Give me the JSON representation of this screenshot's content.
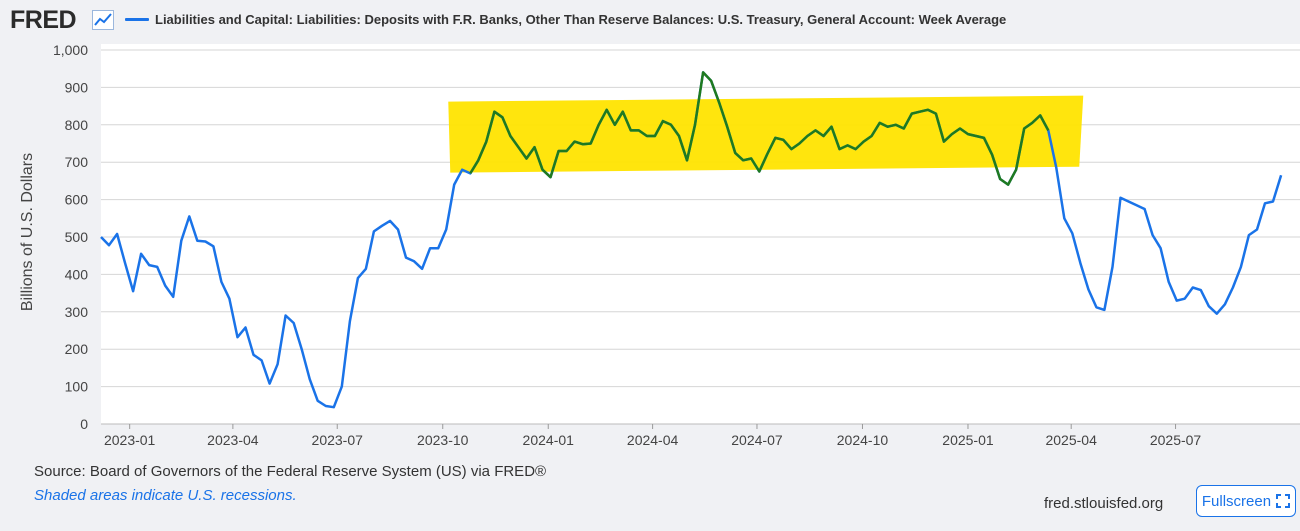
{
  "header": {
    "logo": "FRED",
    "legend_label": "Liabilities and Capital: Liabilities: Deposits with F.R. Banks, Other Than Reserve Balances: U.S. Treasury, General Account: Week Average"
  },
  "footer": {
    "source": "Source: Board of Governors of the Federal Reserve System (US) via FRED®",
    "note": "Shaded areas indicate U.S. recessions.",
    "site": "fred.stlouisfed.org",
    "fullscreen_label": "Fullscreen"
  },
  "colors": {
    "series": "#1a73e8",
    "highlight_fill": "#ffe400",
    "highlight_line": "#1f7a1f",
    "grid": "#d6d6d6"
  },
  "chart_data": {
    "type": "line",
    "title": "",
    "xlabel": "",
    "ylabel": "Billions of U.S. Dollars",
    "ylim": [
      0,
      1000
    ],
    "y_ticks": [
      "0",
      "100",
      "200",
      "300",
      "400",
      "500",
      "600",
      "700",
      "800",
      "900",
      "1,000"
    ],
    "x_ticks": [
      "2023-01",
      "2023-04",
      "2023-07",
      "2023-10",
      "2024-01",
      "2024-04",
      "2024-07",
      "2024-10",
      "2025-01",
      "2025-04",
      "2025-07"
    ],
    "x_range": [
      "2022-12-07",
      "2025-09-17"
    ],
    "grid": true,
    "series": [
      {
        "name": "Liabilities and Capital: Liabilities: Deposits with F.R. Banks, Other Than Reserve Balances: U.S. Treasury, General Account: Week Average",
        "points": [
          [
            "2022-12-07",
            500
          ],
          [
            "2022-12-14",
            478
          ],
          [
            "2022-12-21",
            508
          ],
          [
            "2022-12-28",
            430
          ],
          [
            "2023-01-04",
            355
          ],
          [
            "2023-01-11",
            455
          ],
          [
            "2023-01-18",
            425
          ],
          [
            "2023-01-25",
            420
          ],
          [
            "2023-02-01",
            370
          ],
          [
            "2023-02-08",
            340
          ],
          [
            "2023-02-15",
            490
          ],
          [
            "2023-02-22",
            555
          ],
          [
            "2023-03-01",
            490
          ],
          [
            "2023-03-08",
            488
          ],
          [
            "2023-03-15",
            475
          ],
          [
            "2023-03-22",
            380
          ],
          [
            "2023-03-29",
            335
          ],
          [
            "2023-04-05",
            232
          ],
          [
            "2023-04-12",
            258
          ],
          [
            "2023-04-19",
            185
          ],
          [
            "2023-04-26",
            170
          ],
          [
            "2023-05-03",
            108
          ],
          [
            "2023-05-10",
            160
          ],
          [
            "2023-05-17",
            290
          ],
          [
            "2023-05-24",
            270
          ],
          [
            "2023-05-31",
            200
          ],
          [
            "2023-06-07",
            120
          ],
          [
            "2023-06-14",
            62
          ],
          [
            "2023-06-21",
            48
          ],
          [
            "2023-06-28",
            45
          ],
          [
            "2023-07-05",
            100
          ],
          [
            "2023-07-12",
            275
          ],
          [
            "2023-07-19",
            390
          ],
          [
            "2023-07-26",
            415
          ],
          [
            "2023-08-02",
            515
          ],
          [
            "2023-08-09",
            530
          ],
          [
            "2023-08-16",
            543
          ],
          [
            "2023-08-23",
            520
          ],
          [
            "2023-08-30",
            445
          ],
          [
            "2023-09-06",
            435
          ],
          [
            "2023-09-13",
            415
          ],
          [
            "2023-09-20",
            470
          ],
          [
            "2023-09-27",
            470
          ],
          [
            "2023-10-04",
            520
          ],
          [
            "2023-10-11",
            640
          ],
          [
            "2023-10-18",
            680
          ],
          [
            "2023-10-25",
            670
          ],
          [
            "2023-11-01",
            705
          ],
          [
            "2023-11-08",
            755
          ],
          [
            "2023-11-15",
            835
          ],
          [
            "2023-11-22",
            820
          ],
          [
            "2023-11-29",
            770
          ],
          [
            "2023-12-06",
            740
          ],
          [
            "2023-12-13",
            710
          ],
          [
            "2023-12-20",
            740
          ],
          [
            "2023-12-27",
            680
          ],
          [
            "2024-01-03",
            660
          ],
          [
            "2024-01-10",
            730
          ],
          [
            "2024-01-17",
            730
          ],
          [
            "2024-01-24",
            755
          ],
          [
            "2024-01-31",
            748
          ],
          [
            "2024-02-07",
            750
          ],
          [
            "2024-02-14",
            800
          ],
          [
            "2024-02-21",
            840
          ],
          [
            "2024-02-28",
            800
          ],
          [
            "2024-03-06",
            835
          ],
          [
            "2024-03-13",
            785
          ],
          [
            "2024-03-20",
            785
          ],
          [
            "2024-03-27",
            770
          ],
          [
            "2024-04-03",
            770
          ],
          [
            "2024-04-10",
            810
          ],
          [
            "2024-04-17",
            800
          ],
          [
            "2024-04-24",
            770
          ],
          [
            "2024-05-01",
            705
          ],
          [
            "2024-05-08",
            800
          ],
          [
            "2024-05-15",
            940
          ],
          [
            "2024-05-22",
            918
          ],
          [
            "2024-05-29",
            860
          ],
          [
            "2024-06-05",
            795
          ],
          [
            "2024-06-12",
            725
          ],
          [
            "2024-06-19",
            705
          ],
          [
            "2024-06-26",
            710
          ],
          [
            "2024-07-03",
            675
          ],
          [
            "2024-07-10",
            722
          ],
          [
            "2024-07-17",
            765
          ],
          [
            "2024-07-24",
            760
          ],
          [
            "2024-07-31",
            735
          ],
          [
            "2024-08-07",
            750
          ],
          [
            "2024-08-14",
            770
          ],
          [
            "2024-08-21",
            785
          ],
          [
            "2024-08-28",
            770
          ],
          [
            "2024-09-04",
            795
          ],
          [
            "2024-09-11",
            735
          ],
          [
            "2024-09-18",
            745
          ],
          [
            "2024-09-25",
            735
          ],
          [
            "2024-10-02",
            755
          ],
          [
            "2024-10-09",
            770
          ],
          [
            "2024-10-16",
            805
          ],
          [
            "2024-10-23",
            795
          ],
          [
            "2024-10-30",
            800
          ],
          [
            "2024-11-06",
            790
          ],
          [
            "2024-11-13",
            830
          ],
          [
            "2024-11-20",
            835
          ],
          [
            "2024-11-27",
            840
          ],
          [
            "2024-12-04",
            830
          ],
          [
            "2024-12-11",
            755
          ],
          [
            "2024-12-18",
            775
          ],
          [
            "2024-12-25",
            790
          ],
          [
            "2025-01-01",
            775
          ],
          [
            "2025-01-08",
            770
          ],
          [
            "2025-01-15",
            765
          ],
          [
            "2025-01-22",
            720
          ],
          [
            "2025-01-29",
            655
          ],
          [
            "2025-02-05",
            640
          ],
          [
            "2025-02-12",
            680
          ],
          [
            "2025-02-19",
            790
          ],
          [
            "2025-02-26",
            805
          ],
          [
            "2025-03-05",
            825
          ],
          [
            "2025-03-12",
            785
          ],
          [
            "2025-03-19",
            685
          ],
          [
            "2025-03-26",
            550
          ],
          [
            "2025-04-02",
            510
          ],
          [
            "2025-04-09",
            430
          ],
          [
            "2025-04-16",
            360
          ],
          [
            "2025-04-23",
            312
          ],
          [
            "2025-04-30",
            305
          ],
          [
            "2025-05-07",
            420
          ],
          [
            "2025-05-14",
            605
          ],
          [
            "2025-05-21",
            595
          ],
          [
            "2025-05-28",
            585
          ],
          [
            "2025-06-04",
            575
          ],
          [
            "2025-06-11",
            505
          ],
          [
            "2025-06-18",
            470
          ],
          [
            "2025-06-25",
            380
          ],
          [
            "2025-07-02",
            330
          ],
          [
            "2025-07-09",
            335
          ],
          [
            "2025-07-16",
            365
          ],
          [
            "2025-07-23",
            358
          ],
          [
            "2025-07-30",
            315
          ],
          [
            "2025-08-06",
            295
          ],
          [
            "2025-08-13",
            320
          ],
          [
            "2025-08-20",
            365
          ],
          [
            "2025-08-27",
            420
          ],
          [
            "2025-09-03",
            505
          ],
          [
            "2025-09-10",
            520
          ],
          [
            "2025-09-17",
            590
          ],
          [
            "2025-09-24",
            595
          ],
          [
            "2025-10-01",
            665
          ]
        ]
      }
    ],
    "annotations": [
      {
        "type": "highlight-box",
        "color": "yellow",
        "from": "2023-10-25",
        "to": "2025-03-12"
      }
    ]
  }
}
